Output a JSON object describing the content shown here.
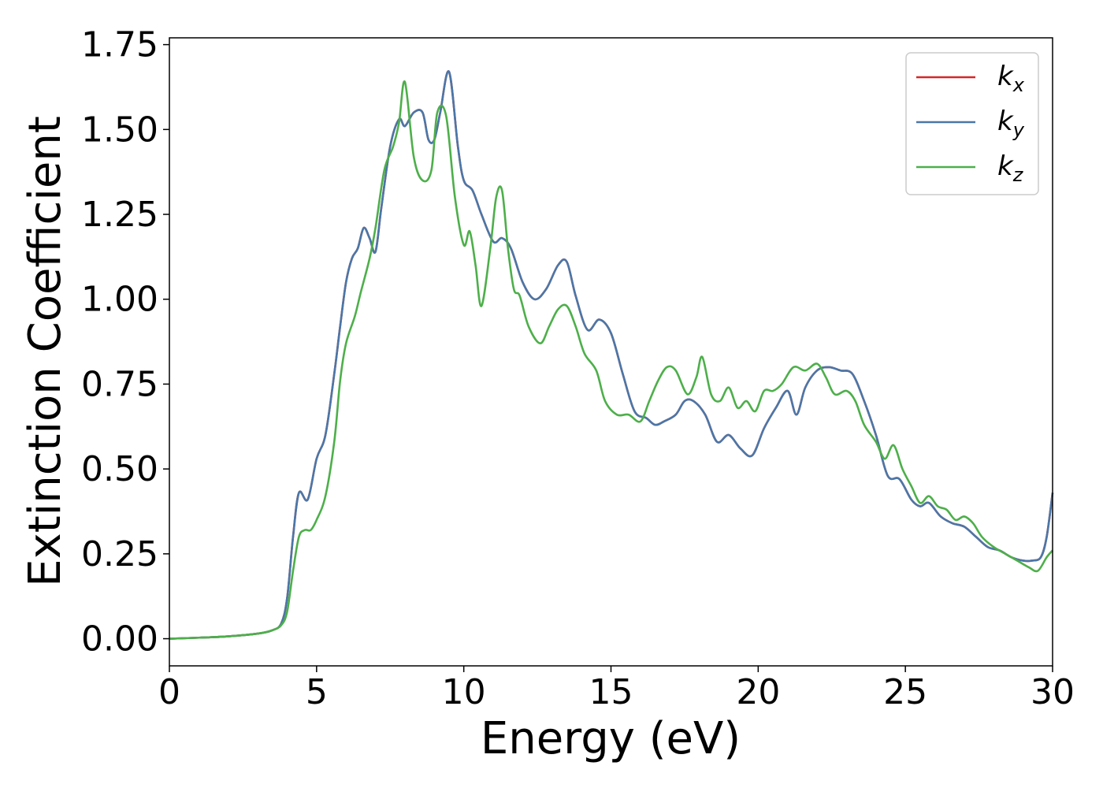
{
  "chart_data": {
    "type": "line",
    "xlabel": "Energy (eV)",
    "ylabel": "Extinction Coefficient",
    "xlim": [
      0,
      30
    ],
    "ylim": [
      -0.08,
      1.77
    ],
    "x_ticks": [
      0,
      5,
      10,
      15,
      20,
      25,
      30
    ],
    "x_tick_labels": [
      "0",
      "5",
      "10",
      "15",
      "20",
      "25",
      "30"
    ],
    "y_ticks": [
      0,
      0.25,
      0.5,
      0.75,
      1.0,
      1.25,
      1.5,
      1.75
    ],
    "y_tick_labels": [
      "0.00",
      "0.25",
      "0.50",
      "0.75",
      "1.00",
      "1.25",
      "1.50",
      "1.75"
    ],
    "grid": false,
    "legend_position": "top-right",
    "series": [
      {
        "name": "k_x",
        "legend_base": "k",
        "legend_sub": "x",
        "color": "#d62728",
        "x": [
          0,
          1,
          2,
          3,
          3.5,
          3.8,
          4.0,
          4.2,
          4.4,
          4.7,
          5.0,
          5.3,
          5.6,
          5.8,
          6.0,
          6.2,
          6.4,
          6.6,
          6.8,
          7.0,
          7.2,
          7.5,
          7.8,
          8.0,
          8.3,
          8.6,
          8.8,
          9.0,
          9.2,
          9.5,
          9.8,
          10.0,
          10.3,
          10.6,
          11.0,
          11.3,
          11.6,
          12.0,
          12.4,
          12.8,
          13.2,
          13.5,
          13.8,
          14.2,
          14.6,
          15.0,
          15.4,
          15.8,
          16.2,
          16.5,
          16.8,
          17.2,
          17.5,
          17.8,
          18.2,
          18.6,
          19.0,
          19.4,
          19.8,
          20.2,
          20.6,
          21.0,
          21.3,
          21.6,
          22.0,
          22.4,
          22.8,
          23.2,
          23.6,
          24.0,
          24.4,
          24.8,
          25.2,
          25.5,
          25.8,
          26.2,
          26.6,
          27.0,
          27.4,
          27.8,
          28.2,
          28.6,
          29.0,
          29.3,
          29.6,
          29.8,
          30.0
        ],
        "values": [
          0.0,
          0.003,
          0.007,
          0.015,
          0.025,
          0.045,
          0.12,
          0.3,
          0.43,
          0.41,
          0.53,
          0.6,
          0.78,
          0.92,
          1.05,
          1.12,
          1.15,
          1.21,
          1.18,
          1.14,
          1.27,
          1.45,
          1.53,
          1.51,
          1.55,
          1.55,
          1.47,
          1.47,
          1.55,
          1.67,
          1.45,
          1.35,
          1.32,
          1.25,
          1.17,
          1.18,
          1.15,
          1.05,
          1.0,
          1.03,
          1.1,
          1.11,
          1.01,
          0.91,
          0.94,
          0.9,
          0.78,
          0.67,
          0.65,
          0.63,
          0.64,
          0.66,
          0.7,
          0.7,
          0.66,
          0.58,
          0.6,
          0.56,
          0.54,
          0.62,
          0.68,
          0.73,
          0.66,
          0.74,
          0.79,
          0.8,
          0.79,
          0.78,
          0.7,
          0.6,
          0.48,
          0.47,
          0.41,
          0.39,
          0.4,
          0.36,
          0.34,
          0.33,
          0.3,
          0.27,
          0.26,
          0.24,
          0.23,
          0.23,
          0.24,
          0.3,
          0.43
        ]
      },
      {
        "name": "k_y",
        "legend_base": "k",
        "legend_sub": "y",
        "color": "#4a77a8",
        "x": [
          0,
          1,
          2,
          3,
          3.5,
          3.8,
          4.0,
          4.2,
          4.4,
          4.7,
          5.0,
          5.3,
          5.6,
          5.8,
          6.0,
          6.2,
          6.4,
          6.6,
          6.8,
          7.0,
          7.2,
          7.5,
          7.8,
          8.0,
          8.3,
          8.6,
          8.8,
          9.0,
          9.2,
          9.5,
          9.8,
          10.0,
          10.3,
          10.6,
          11.0,
          11.3,
          11.6,
          12.0,
          12.4,
          12.8,
          13.2,
          13.5,
          13.8,
          14.2,
          14.6,
          15.0,
          15.4,
          15.8,
          16.2,
          16.5,
          16.8,
          17.2,
          17.5,
          17.8,
          18.2,
          18.6,
          19.0,
          19.4,
          19.8,
          20.2,
          20.6,
          21.0,
          21.3,
          21.6,
          22.0,
          22.4,
          22.8,
          23.2,
          23.6,
          24.0,
          24.4,
          24.8,
          25.2,
          25.5,
          25.8,
          26.2,
          26.6,
          27.0,
          27.4,
          27.8,
          28.2,
          28.6,
          29.0,
          29.3,
          29.6,
          29.8,
          30.0
        ],
        "values": [
          0.0,
          0.003,
          0.007,
          0.015,
          0.025,
          0.045,
          0.12,
          0.3,
          0.43,
          0.41,
          0.53,
          0.6,
          0.78,
          0.92,
          1.05,
          1.12,
          1.15,
          1.21,
          1.18,
          1.14,
          1.27,
          1.45,
          1.53,
          1.51,
          1.55,
          1.55,
          1.47,
          1.47,
          1.55,
          1.67,
          1.45,
          1.35,
          1.32,
          1.25,
          1.17,
          1.18,
          1.15,
          1.05,
          1.0,
          1.03,
          1.1,
          1.11,
          1.01,
          0.91,
          0.94,
          0.9,
          0.78,
          0.67,
          0.65,
          0.63,
          0.64,
          0.66,
          0.7,
          0.7,
          0.66,
          0.58,
          0.6,
          0.56,
          0.54,
          0.62,
          0.68,
          0.73,
          0.66,
          0.74,
          0.79,
          0.8,
          0.79,
          0.78,
          0.7,
          0.6,
          0.48,
          0.47,
          0.41,
          0.39,
          0.4,
          0.36,
          0.34,
          0.33,
          0.3,
          0.27,
          0.26,
          0.24,
          0.23,
          0.23,
          0.24,
          0.3,
          0.43
        ]
      },
      {
        "name": "k_z",
        "legend_base": "k",
        "legend_sub": "z",
        "color": "#4daf4a",
        "x": [
          0,
          1,
          2,
          3,
          3.5,
          3.8,
          4.0,
          4.2,
          4.4,
          4.6,
          4.8,
          5.0,
          5.3,
          5.6,
          5.8,
          6.0,
          6.3,
          6.5,
          6.8,
          7.0,
          7.3,
          7.6,
          7.8,
          8.0,
          8.3,
          8.6,
          8.9,
          9.1,
          9.4,
          9.7,
          10.0,
          10.2,
          10.4,
          10.6,
          10.9,
          11.1,
          11.3,
          11.5,
          11.7,
          11.9,
          12.2,
          12.6,
          12.9,
          13.2,
          13.5,
          13.8,
          14.1,
          14.5,
          14.8,
          15.2,
          15.6,
          16.0,
          16.3,
          16.6,
          16.9,
          17.2,
          17.6,
          17.9,
          18.1,
          18.4,
          18.7,
          19.0,
          19.3,
          19.6,
          19.9,
          20.2,
          20.5,
          20.8,
          21.2,
          21.6,
          22.0,
          22.3,
          22.6,
          23.0,
          23.3,
          23.6,
          24.0,
          24.3,
          24.6,
          24.9,
          25.2,
          25.5,
          25.8,
          26.1,
          26.4,
          26.7,
          27.0,
          27.3,
          27.6,
          28.0,
          28.4,
          28.8,
          29.2,
          29.5,
          29.8,
          30.0
        ],
        "values": [
          0.0,
          0.003,
          0.007,
          0.015,
          0.025,
          0.04,
          0.08,
          0.2,
          0.3,
          0.32,
          0.32,
          0.35,
          0.42,
          0.58,
          0.76,
          0.87,
          0.95,
          1.02,
          1.12,
          1.21,
          1.38,
          1.45,
          1.52,
          1.64,
          1.42,
          1.35,
          1.38,
          1.55,
          1.54,
          1.3,
          1.16,
          1.2,
          1.1,
          0.98,
          1.15,
          1.3,
          1.32,
          1.15,
          1.03,
          1.01,
          0.92,
          0.87,
          0.92,
          0.97,
          0.98,
          0.92,
          0.84,
          0.79,
          0.7,
          0.66,
          0.66,
          0.64,
          0.7,
          0.76,
          0.8,
          0.79,
          0.72,
          0.77,
          0.83,
          0.72,
          0.7,
          0.74,
          0.68,
          0.7,
          0.67,
          0.73,
          0.73,
          0.75,
          0.8,
          0.79,
          0.81,
          0.77,
          0.72,
          0.73,
          0.7,
          0.63,
          0.58,
          0.53,
          0.57,
          0.5,
          0.45,
          0.4,
          0.42,
          0.39,
          0.38,
          0.35,
          0.36,
          0.34,
          0.3,
          0.27,
          0.25,
          0.23,
          0.21,
          0.2,
          0.24,
          0.26
        ]
      }
    ]
  }
}
